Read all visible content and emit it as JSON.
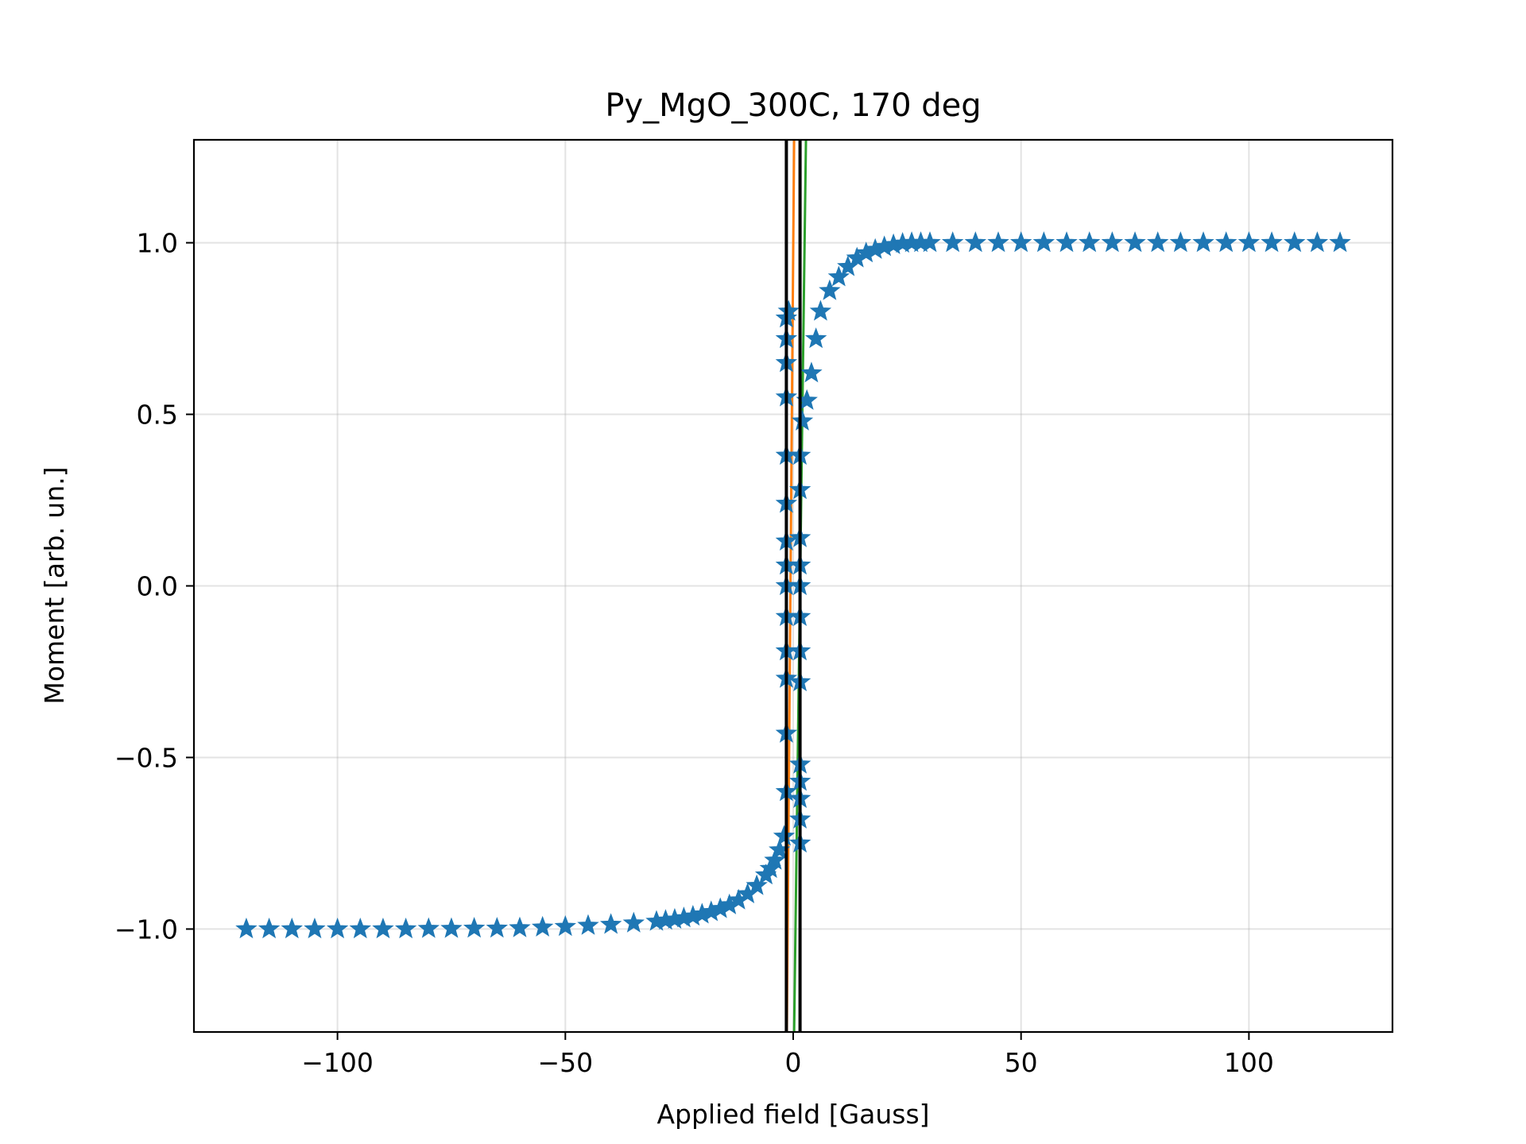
{
  "chart_data": {
    "type": "scatter",
    "title": "Py_MgO_300C, 170 deg",
    "xlabel": "Applied field [Gauss]",
    "ylabel": "Moment [arb. un.]",
    "xlim": [
      -131.5,
      131.5
    ],
    "ylim": [
      -1.3,
      1.3
    ],
    "xticks": [
      -100,
      -50,
      0,
      50,
      100
    ],
    "xtick_labels": [
      "−100",
      "−50",
      "0",
      "50",
      "100"
    ],
    "yticks": [
      -1.0,
      -0.5,
      0.0,
      0.5,
      1.0
    ],
    "ytick_labels": [
      "−1.0",
      "−0.5",
      "0.0",
      "0.5",
      "1.0"
    ],
    "grid": true,
    "series": [
      {
        "marker": "star",
        "color": "#1f77b4",
        "points": [
          [
            -120,
            -1.0
          ],
          [
            -115,
            -1.0
          ],
          [
            -110,
            -1.0
          ],
          [
            -105,
            -1.0
          ],
          [
            -100,
            -1.0
          ],
          [
            -95,
            -1.0
          ],
          [
            -90,
            -1.0
          ],
          [
            -85,
            -1.0
          ],
          [
            -80,
            -0.999
          ],
          [
            -75,
            -0.999
          ],
          [
            -70,
            -0.998
          ],
          [
            -65,
            -0.998
          ],
          [
            -60,
            -0.997
          ],
          [
            -55,
            -0.995
          ],
          [
            -50,
            -0.993
          ],
          [
            -45,
            -0.99
          ],
          [
            -40,
            -0.987
          ],
          [
            -35,
            -0.983
          ],
          [
            -30,
            -0.978
          ],
          [
            -28,
            -0.975
          ],
          [
            -26,
            -0.972
          ],
          [
            -24,
            -0.968
          ],
          [
            -22,
            -0.963
          ],
          [
            -20,
            -0.957
          ],
          [
            -18,
            -0.95
          ],
          [
            -16,
            -0.941
          ],
          [
            -14,
            -0.93
          ],
          [
            -12,
            -0.916
          ],
          [
            -10,
            -0.898
          ],
          [
            -8,
            -0.874
          ],
          [
            -6,
            -0.843
          ],
          [
            -5,
            -0.824
          ],
          [
            -4,
            -0.8
          ],
          [
            -3,
            -0.77
          ],
          [
            -2,
            -0.73
          ],
          [
            -1.5,
            -0.6
          ],
          [
            -1.5,
            -0.43
          ],
          [
            -1.5,
            -0.27
          ],
          [
            -1.5,
            -0.19
          ],
          [
            -1.5,
            -0.09
          ],
          [
            -1.5,
            0.0
          ],
          [
            -1.5,
            0.06
          ],
          [
            -1.5,
            0.13
          ],
          [
            -1.5,
            0.24
          ],
          [
            -1.5,
            0.38
          ],
          [
            -1.5,
            0.55
          ],
          [
            -1.5,
            0.65
          ],
          [
            -1.5,
            0.72
          ],
          [
            -1.5,
            0.78
          ],
          [
            -1,
            0.8
          ],
          [
            1.5,
            -0.75
          ],
          [
            1.5,
            -0.68
          ],
          [
            1.5,
            -0.62
          ],
          [
            1.5,
            -0.57
          ],
          [
            1.5,
            -0.52
          ],
          [
            1.5,
            -0.28
          ],
          [
            1.5,
            -0.19
          ],
          [
            1.5,
            -0.09
          ],
          [
            1.5,
            0.0
          ],
          [
            1.5,
            0.06
          ],
          [
            1.5,
            0.14
          ],
          [
            1.5,
            0.28
          ],
          [
            1.5,
            0.38
          ],
          [
            2,
            0.48
          ],
          [
            3,
            0.54
          ],
          [
            4,
            0.62
          ],
          [
            5,
            0.72
          ],
          [
            6,
            0.8
          ],
          [
            8,
            0.86
          ],
          [
            10,
            0.9
          ],
          [
            12,
            0.93
          ],
          [
            14,
            0.955
          ],
          [
            16,
            0.97
          ],
          [
            18,
            0.98
          ],
          [
            20,
            0.988
          ],
          [
            22,
            0.994
          ],
          [
            24,
            0.998
          ],
          [
            26,
            1.0
          ],
          [
            28,
            1.0
          ],
          [
            30,
            1.0
          ],
          [
            35,
            1.0
          ],
          [
            40,
            1.0
          ],
          [
            45,
            1.0
          ],
          [
            50,
            1.0
          ],
          [
            55,
            1.0
          ],
          [
            60,
            1.0
          ],
          [
            65,
            1.0
          ],
          [
            70,
            1.0
          ],
          [
            75,
            1.0
          ],
          [
            80,
            1.0
          ],
          [
            85,
            1.0
          ],
          [
            90,
            1.0
          ],
          [
            95,
            1.0
          ],
          [
            100,
            1.0
          ],
          [
            105,
            1.0
          ],
          [
            110,
            1.0
          ],
          [
            115,
            1.0
          ],
          [
            120,
            1.0
          ]
        ]
      }
    ],
    "lines": [
      {
        "color": "#ff7f0e",
        "x": [
          -1.4,
          0.2
        ],
        "y": [
          -1.3,
          1.3
        ]
      },
      {
        "color": "#2ca02c",
        "x": [
          0.2,
          2.8
        ],
        "y": [
          -1.3,
          1.3
        ]
      },
      {
        "color": "#000000",
        "x": [
          -1.5,
          -1.5
        ],
        "y": [
          -1.3,
          1.3
        ]
      },
      {
        "color": "#000000",
        "x": [
          1.5,
          1.5
        ],
        "y": [
          -1.3,
          1.3
        ]
      }
    ]
  }
}
